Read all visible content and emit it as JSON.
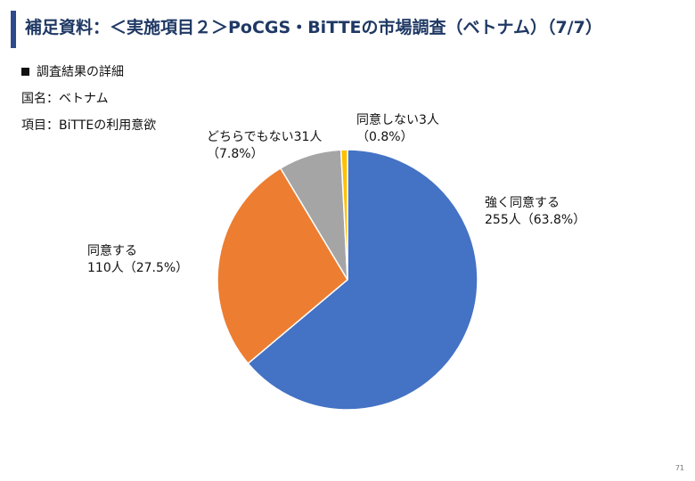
{
  "header": {
    "title": "補足資料：＜実施項目２＞PoCGS・BiTTEの市場調査（ベトナム）（7/7）"
  },
  "content": {
    "bullet_label": "調査結果の詳細",
    "country_line": "国名：ベトナム",
    "item_line": "項目：BiTTEの利用意欲"
  },
  "chart_data": {
    "type": "pie",
    "title": "",
    "slices": [
      {
        "label": "強く同意する",
        "value_text": "255人（63.8%）",
        "count": 255,
        "percent": 63.8,
        "color": "#4472C4"
      },
      {
        "label": "同意する",
        "value_text": "110人（27.5%）",
        "count": 110,
        "percent": 27.5,
        "color": "#ED7D31"
      },
      {
        "label": "どちらでもない31人",
        "value_text": "（7.8%）",
        "count": 31,
        "percent": 7.8,
        "color": "#A5A5A5"
      },
      {
        "label": "同意しない3人",
        "value_text": "（0.8%）",
        "count": 3,
        "percent": 0.8,
        "color": "#FFC000"
      }
    ],
    "start_angle": "12 o'clock",
    "direction": "clockwise",
    "legend": "none"
  },
  "footer": {
    "page_number": "71"
  }
}
